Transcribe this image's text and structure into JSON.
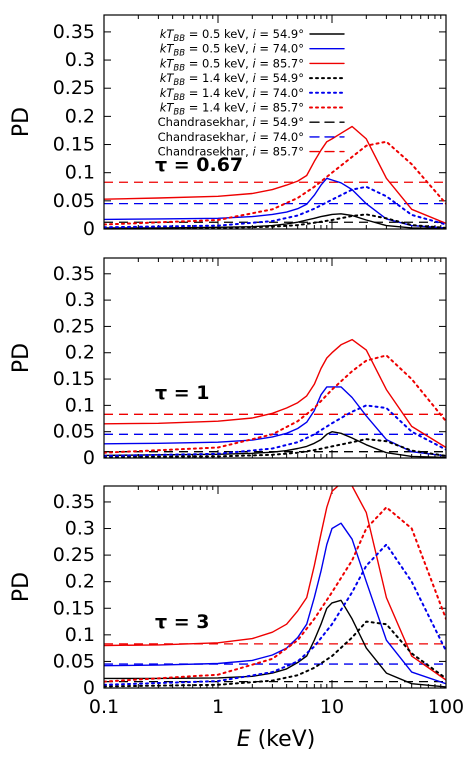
{
  "chart_data": {
    "type": "line",
    "xscale": "log",
    "xlim": [
      0.1,
      100
    ],
    "ylim": [
      0,
      0.38
    ],
    "xlabel_italic": "E",
    "xlabel_unit": " (keV)",
    "ylabel": "PD",
    "xticks": [
      {
        "v": 0.1,
        "label": "0.1"
      },
      {
        "v": 1,
        "label": "1"
      },
      {
        "v": 10,
        "label": "10"
      },
      {
        "v": 100,
        "label": "100"
      }
    ],
    "yticks": [
      {
        "v": 0,
        "label": "0"
      },
      {
        "v": 0.05,
        "label": "0.05"
      },
      {
        "v": 0.1,
        "label": "0.1"
      },
      {
        "v": 0.15,
        "label": "0.15"
      },
      {
        "v": 0.2,
        "label": "0.2"
      },
      {
        "v": 0.25,
        "label": "0.25"
      },
      {
        "v": 0.3,
        "label": "0.3"
      },
      {
        "v": 0.35,
        "label": "0.35"
      }
    ],
    "colors": {
      "i54": "#000000",
      "i74": "#0000ee",
      "i85": "#ee0000"
    },
    "legend": {
      "placement": "top-right of first panel",
      "entries": [
        {
          "text": "kT_BB = 0.5 keV, i = 54.9°",
          "color": "#000000",
          "style": "solid"
        },
        {
          "text": "kT_BB = 0.5 keV, i = 74.0°",
          "color": "#0000ee",
          "style": "solid"
        },
        {
          "text": "kT_BB = 0.5 keV, i = 85.7°",
          "color": "#ee0000",
          "style": "solid"
        },
        {
          "text": "kT_BB = 1.4 keV, i = 54.9°",
          "color": "#000000",
          "style": "dotted"
        },
        {
          "text": "kT_BB = 1.4 keV, i = 74.0°",
          "color": "#0000ee",
          "style": "dotted"
        },
        {
          "text": "kT_BB = 1.4 keV, i = 85.7°",
          "color": "#ee0000",
          "style": "dotted"
        },
        {
          "text": "Chandrasekhar, i = 54.9°",
          "color": "#000000",
          "style": "dashed"
        },
        {
          "text": "Chandrasekhar, i = 74.0°",
          "color": "#0000ee",
          "style": "dashed"
        },
        {
          "text": "Chandrasekhar, i = 85.7°",
          "color": "#ee0000",
          "style": "dashed"
        }
      ]
    },
    "panels": [
      {
        "label": "τ = 0.67",
        "chandrasekhar": {
          "i54": 0.012,
          "i74": 0.045,
          "i85": 0.083
        },
        "series": [
          {
            "name": "kT_BB = 0.5 keV, i = 54.9°",
            "key": "i54",
            "style": "solid",
            "x": [
              0.1,
              0.3,
              1,
              2,
              3,
              4,
              5,
              6,
              7,
              8,
              9,
              10,
              12,
              15,
              20,
              30,
              50,
              100
            ],
            "y": [
              0.002,
              0.002,
              0.003,
              0.004,
              0.006,
              0.009,
              0.012,
              0.016,
              0.019,
              0.022,
              0.024,
              0.026,
              0.027,
              0.024,
              0.016,
              0.006,
              0.002,
              0.001
            ]
          },
          {
            "name": "kT_BB = 0.5 keV, i = 74.0°",
            "key": "i74",
            "style": "solid",
            "x": [
              0.1,
              0.3,
              1,
              2,
              3,
              4,
              5,
              6,
              7,
              8,
              9,
              10,
              12,
              15,
              20,
              30,
              50,
              100
            ],
            "y": [
              0.017,
              0.018,
              0.019,
              0.022,
              0.026,
              0.03,
              0.036,
              0.044,
              0.06,
              0.078,
              0.09,
              0.087,
              0.082,
              0.07,
              0.045,
              0.018,
              0.006,
              0.002
            ]
          },
          {
            "name": "kT_BB = 0.5 keV, i = 85.7°",
            "key": "i85",
            "style": "solid",
            "x": [
              0.1,
              0.3,
              1,
              2,
              3,
              4,
              5,
              6,
              7,
              8,
              9,
              10,
              12,
              15,
              20,
              30,
              50,
              100
            ],
            "y": [
              0.053,
              0.055,
              0.058,
              0.063,
              0.07,
              0.078,
              0.085,
              0.095,
              0.12,
              0.14,
              0.155,
              0.16,
              0.17,
              0.182,
              0.16,
              0.09,
              0.035,
              0.01
            ]
          },
          {
            "name": "kT_BB = 1.4 keV, i = 54.9°",
            "key": "i54",
            "style": "dotted",
            "x": [
              0.1,
              1,
              3,
              5,
              7,
              10,
              15,
              20,
              30,
              50,
              100
            ],
            "y": [
              0.001,
              0.002,
              0.004,
              0.007,
              0.011,
              0.016,
              0.023,
              0.026,
              0.019,
              0.007,
              0.002
            ]
          },
          {
            "name": "kT_BB = 1.4 keV, i = 74.0°",
            "key": "i74",
            "style": "dotted",
            "x": [
              0.1,
              1,
              3,
              5,
              7,
              10,
              15,
              20,
              30,
              50,
              100
            ],
            "y": [
              0.003,
              0.006,
              0.014,
              0.024,
              0.036,
              0.052,
              0.07,
              0.075,
              0.058,
              0.025,
              0.008
            ]
          },
          {
            "name": "kT_BB = 1.4 keV, i = 85.7°",
            "key": "i85",
            "style": "dotted",
            "x": [
              0.1,
              1,
              3,
              5,
              7,
              10,
              15,
              20,
              30,
              50,
              100
            ],
            "y": [
              0.008,
              0.016,
              0.035,
              0.055,
              0.075,
              0.1,
              0.128,
              0.148,
              0.155,
              0.115,
              0.045
            ]
          }
        ]
      },
      {
        "label": "τ = 1",
        "chandrasekhar": {
          "i54": 0.012,
          "i74": 0.045,
          "i85": 0.083
        },
        "series": [
          {
            "name": "kT_BB = 0.5 keV, i = 54.9°",
            "key": "i54",
            "style": "solid",
            "x": [
              0.1,
              0.3,
              1,
              2,
              3,
              4,
              5,
              6,
              7,
              8,
              9,
              10,
              12,
              15,
              20,
              30,
              50,
              100
            ],
            "y": [
              0.005,
              0.006,
              0.007,
              0.009,
              0.011,
              0.014,
              0.018,
              0.022,
              0.028,
              0.035,
              0.045,
              0.05,
              0.047,
              0.038,
              0.025,
              0.01,
              0.003,
              0.001
            ]
          },
          {
            "name": "kT_BB = 0.5 keV, i = 74.0°",
            "key": "i74",
            "style": "solid",
            "x": [
              0.1,
              0.3,
              1,
              2,
              3,
              4,
              5,
              6,
              7,
              8,
              9,
              10,
              12,
              15,
              20,
              30,
              50,
              100
            ],
            "y": [
              0.027,
              0.028,
              0.03,
              0.034,
              0.04,
              0.047,
              0.056,
              0.068,
              0.09,
              0.12,
              0.135,
              0.135,
              0.135,
              0.115,
              0.08,
              0.035,
              0.012,
              0.004
            ]
          },
          {
            "name": "kT_BB = 0.5 keV, i = 85.7°",
            "key": "i85",
            "style": "solid",
            "x": [
              0.1,
              0.3,
              1,
              2,
              3,
              4,
              5,
              6,
              7,
              8,
              9,
              10,
              12,
              15,
              20,
              30,
              50,
              100
            ],
            "y": [
              0.065,
              0.066,
              0.07,
              0.076,
              0.085,
              0.095,
              0.105,
              0.118,
              0.14,
              0.17,
              0.19,
              0.2,
              0.215,
              0.225,
              0.205,
              0.13,
              0.06,
              0.02
            ]
          },
          {
            "name": "kT_BB = 1.4 keV, i = 54.9°",
            "key": "i54",
            "style": "dotted",
            "x": [
              0.1,
              1,
              3,
              5,
              7,
              10,
              15,
              20,
              30,
              50,
              100
            ],
            "y": [
              0.002,
              0.003,
              0.006,
              0.01,
              0.015,
              0.022,
              0.03,
              0.036,
              0.032,
              0.014,
              0.004
            ]
          },
          {
            "name": "kT_BB = 1.4 keV, i = 74.0°",
            "key": "i74",
            "style": "dotted",
            "x": [
              0.1,
              1,
              3,
              5,
              7,
              10,
              15,
              20,
              30,
              50,
              100
            ],
            "y": [
              0.004,
              0.008,
              0.018,
              0.03,
              0.045,
              0.066,
              0.088,
              0.1,
              0.095,
              0.05,
              0.016
            ]
          },
          {
            "name": "kT_BB = 1.4 keV, i = 85.7°",
            "key": "i85",
            "style": "dotted",
            "x": [
              0.1,
              1,
              3,
              5,
              7,
              10,
              15,
              20,
              30,
              50,
              100
            ],
            "y": [
              0.01,
              0.02,
              0.045,
              0.07,
              0.095,
              0.13,
              0.165,
              0.185,
              0.195,
              0.15,
              0.07
            ]
          }
        ]
      },
      {
        "label": "τ = 3",
        "chandrasekhar": {
          "i54": 0.012,
          "i74": 0.045,
          "i85": 0.083
        },
        "series": [
          {
            "name": "kT_BB = 0.5 keV, i = 54.9°",
            "key": "i54",
            "style": "solid",
            "x": [
              0.1,
              0.3,
              1,
              2,
              3,
              4,
              5,
              6,
              7,
              8,
              9,
              10,
              12,
              15,
              20,
              30,
              50,
              100
            ],
            "y": [
              0.018,
              0.018,
              0.019,
              0.022,
              0.028,
              0.036,
              0.048,
              0.06,
              0.09,
              0.12,
              0.15,
              0.16,
              0.165,
              0.13,
              0.075,
              0.028,
              0.008,
              0.002
            ]
          },
          {
            "name": "kT_BB = 0.5 keV, i = 74.0°",
            "key": "i74",
            "style": "solid",
            "x": [
              0.1,
              0.3,
              1,
              2,
              3,
              4,
              5,
              6,
              7,
              8,
              9,
              10,
              12,
              15,
              20,
              30,
              50,
              100
            ],
            "y": [
              0.042,
              0.043,
              0.046,
              0.052,
              0.062,
              0.075,
              0.095,
              0.12,
              0.17,
              0.22,
              0.27,
              0.3,
              0.31,
              0.28,
              0.2,
              0.09,
              0.03,
              0.008
            ]
          },
          {
            "name": "kT_BB = 0.5 keV, i = 85.7°",
            "key": "i85",
            "style": "solid",
            "x": [
              0.1,
              0.3,
              1,
              2,
              3,
              4,
              5,
              6,
              7,
              8,
              9,
              10,
              12,
              15,
              20,
              30,
              50,
              100
            ],
            "y": [
              0.08,
              0.081,
              0.085,
              0.093,
              0.105,
              0.12,
              0.145,
              0.17,
              0.23,
              0.29,
              0.34,
              0.37,
              0.385,
              0.38,
              0.33,
              0.17,
              0.06,
              0.015
            ]
          },
          {
            "name": "kT_BB = 1.4 keV, i = 54.9°",
            "key": "i54",
            "style": "dotted",
            "x": [
              0.1,
              1,
              3,
              5,
              7,
              10,
              15,
              20,
              30,
              50,
              100
            ],
            "y": [
              0.003,
              0.006,
              0.014,
              0.024,
              0.038,
              0.06,
              0.095,
              0.125,
              0.12,
              0.065,
              0.018
            ]
          },
          {
            "name": "kT_BB = 1.4 keV, i = 74.0°",
            "key": "i74",
            "style": "dotted",
            "x": [
              0.1,
              1,
              3,
              5,
              7,
              10,
              15,
              20,
              30,
              50,
              100
            ],
            "y": [
              0.006,
              0.013,
              0.03,
              0.05,
              0.078,
              0.12,
              0.18,
              0.23,
              0.27,
              0.2,
              0.07
            ]
          },
          {
            "name": "kT_BB = 1.4 keV, i = 85.7°",
            "key": "i85",
            "style": "dotted",
            "x": [
              0.1,
              1,
              3,
              5,
              7,
              10,
              15,
              20,
              30,
              50,
              100
            ],
            "y": [
              0.012,
              0.025,
              0.055,
              0.09,
              0.13,
              0.18,
              0.24,
              0.3,
              0.34,
              0.3,
              0.13
            ]
          }
        ]
      }
    ]
  }
}
